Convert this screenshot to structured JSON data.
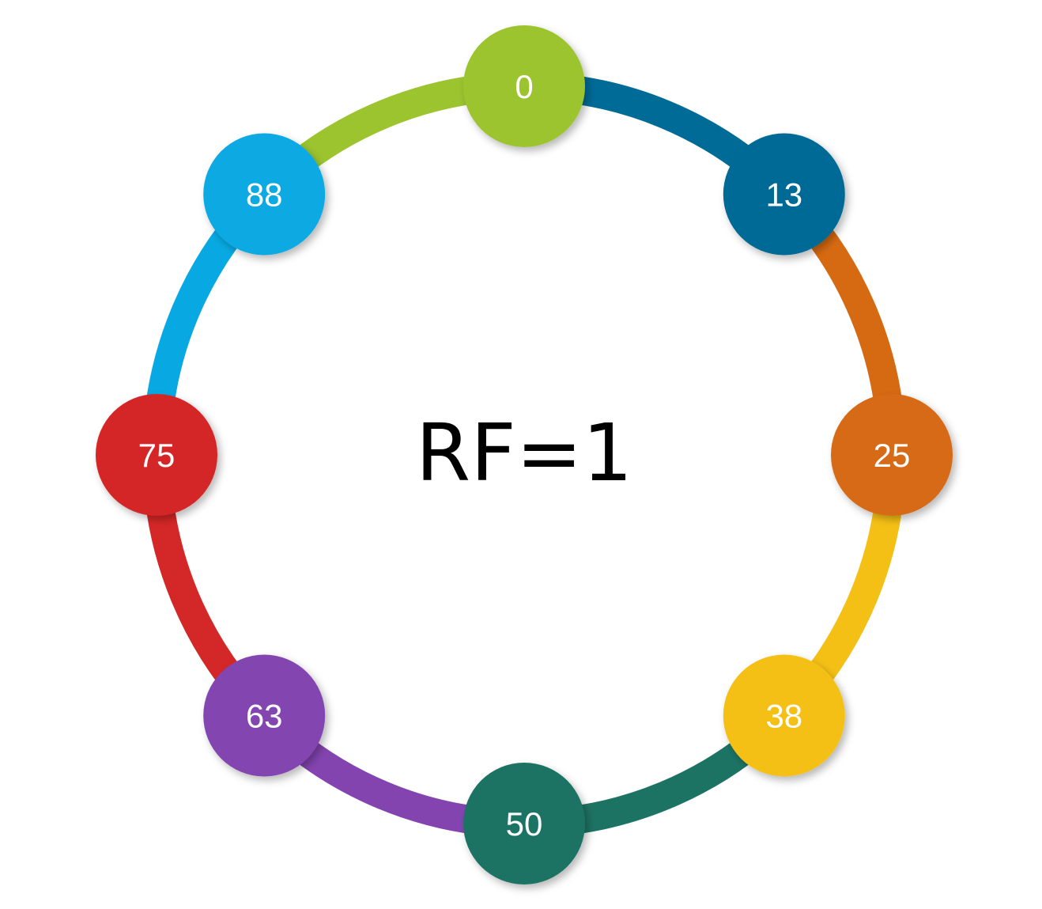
{
  "center_label": "RF=1",
  "nodes": [
    {
      "label": "0",
      "color": "#9bc42f"
    },
    {
      "label": "13",
      "color": "#006b96"
    },
    {
      "label": "25",
      "color": "#d66a12"
    },
    {
      "label": "38",
      "color": "#f5c015"
    },
    {
      "label": "50",
      "color": "#1d7363"
    },
    {
      "label": "63",
      "color": "#8344b0"
    },
    {
      "label": "75",
      "color": "#d42727"
    },
    {
      "label": "88",
      "color": "#08a9e3"
    }
  ],
  "arcs": [
    {
      "from": 0,
      "to": 1,
      "color": "#006b96"
    },
    {
      "from": 1,
      "to": 2,
      "color": "#d66a12"
    },
    {
      "from": 2,
      "to": 3,
      "color": "#f5c015"
    },
    {
      "from": 3,
      "to": 4,
      "color": "#1d7363"
    },
    {
      "from": 4,
      "to": 5,
      "color": "#8344b0"
    },
    {
      "from": 5,
      "to": 6,
      "color": "#d42727"
    },
    {
      "from": 6,
      "to": 7,
      "color": "#08a9e3"
    },
    {
      "from": 7,
      "to": 0,
      "color": "#9bc42f"
    }
  ]
}
